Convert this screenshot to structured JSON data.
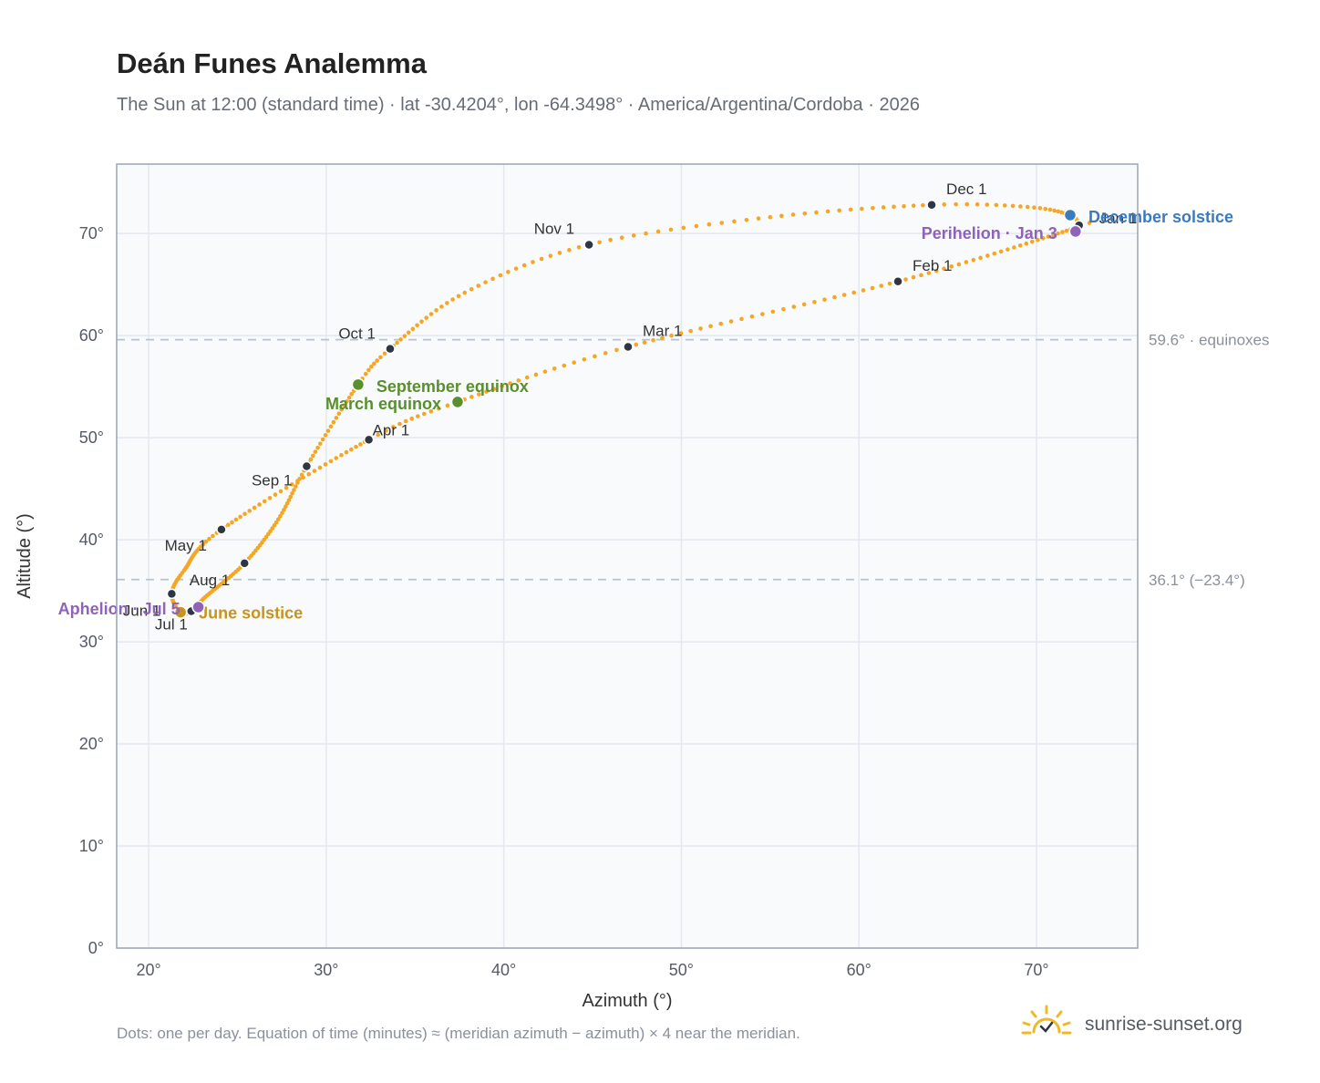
{
  "title": "Deán Funes Analemma",
  "subtitle": "The Sun at 12:00 (standard time) · lat -30.4204°, lon -64.3498° · America/Argentina/Cordoba · 2026",
  "footnote": "Dots: one per day. Equation of time (minutes) ≈ (meridian azimuth − azimuth) × 4 near the meridian.",
  "brand": {
    "name": "sunrise-sunset.org",
    "icon": "sun-logo-icon"
  },
  "colors": {
    "curve": "#f5a623",
    "month_dot": "#2d3642",
    "equinox": "#5a8f2e",
    "june_solstice": "#c8941a",
    "december_solstice": "#3a7abf",
    "apsis": "#8e63b8",
    "grid": "#e3e8ee",
    "plot_bg": "#f8fafc",
    "ref_line": "#b8c3cf"
  },
  "chart_data": {
    "type": "scatter",
    "title": "Deán Funes Analemma",
    "xlabel": "Azimuth (°)",
    "ylabel": "Altitude (°)",
    "xlim": [
      18.2,
      75.7
    ],
    "ylim": [
      0,
      76.8
    ],
    "x_ticks": [
      20,
      30,
      40,
      50,
      60,
      70
    ],
    "y_ticks": [
      0,
      10,
      20,
      30,
      40,
      50,
      60,
      70
    ],
    "grid": true,
    "reference_lines": [
      {
        "y": 59.6,
        "label": "59.6° · equinoxes"
      },
      {
        "y": 36.1,
        "label": "36.1° (−23.4°)"
      }
    ],
    "months": [
      {
        "label": "Jan 1",
        "x": 72.4,
        "y": 70.8,
        "day": 1
      },
      {
        "label": "Feb 1",
        "x": 62.2,
        "y": 65.3,
        "day": 32
      },
      {
        "label": "Mar 1",
        "x": 47.0,
        "y": 58.9,
        "day": 60
      },
      {
        "label": "Apr 1",
        "x": 32.4,
        "y": 49.8,
        "day": 91
      },
      {
        "label": "May 1",
        "x": 24.1,
        "y": 41.0,
        "day": 121
      },
      {
        "label": "Jun 1",
        "x": 21.3,
        "y": 34.7,
        "day": 152
      },
      {
        "label": "Jul 1",
        "x": 22.4,
        "y": 33.0,
        "day": 182
      },
      {
        "label": "Aug 1",
        "x": 25.4,
        "y": 37.7,
        "day": 213
      },
      {
        "label": "Sep 1",
        "x": 28.9,
        "y": 47.2,
        "day": 244
      },
      {
        "label": "Oct 1",
        "x": 33.6,
        "y": 58.7,
        "day": 274
      },
      {
        "label": "Nov 1",
        "x": 44.8,
        "y": 68.9,
        "day": 305
      },
      {
        "label": "Dec 1",
        "x": 64.1,
        "y": 72.8,
        "day": 335
      }
    ],
    "events": [
      {
        "label": "March equinox",
        "x": 37.4,
        "y": 53.5,
        "kind": "equinox"
      },
      {
        "label": "September equinox",
        "x": 31.8,
        "y": 55.2,
        "kind": "equinox"
      },
      {
        "label": "June solstice",
        "x": 21.8,
        "y": 32.9,
        "kind": "june_solstice"
      },
      {
        "label": "December solstice",
        "x": 71.9,
        "y": 71.8,
        "kind": "december_solstice"
      },
      {
        "label": "Aphelion · Jul 5",
        "x": 22.8,
        "y": 33.4,
        "kind": "apsis"
      },
      {
        "label": "Perihelion · Jan 3",
        "x": 72.2,
        "y": 70.2,
        "kind": "apsis"
      }
    ],
    "series": [
      {
        "values_note_free": true,
        "dots_per": "day",
        "count": 365
      }
    ]
  }
}
